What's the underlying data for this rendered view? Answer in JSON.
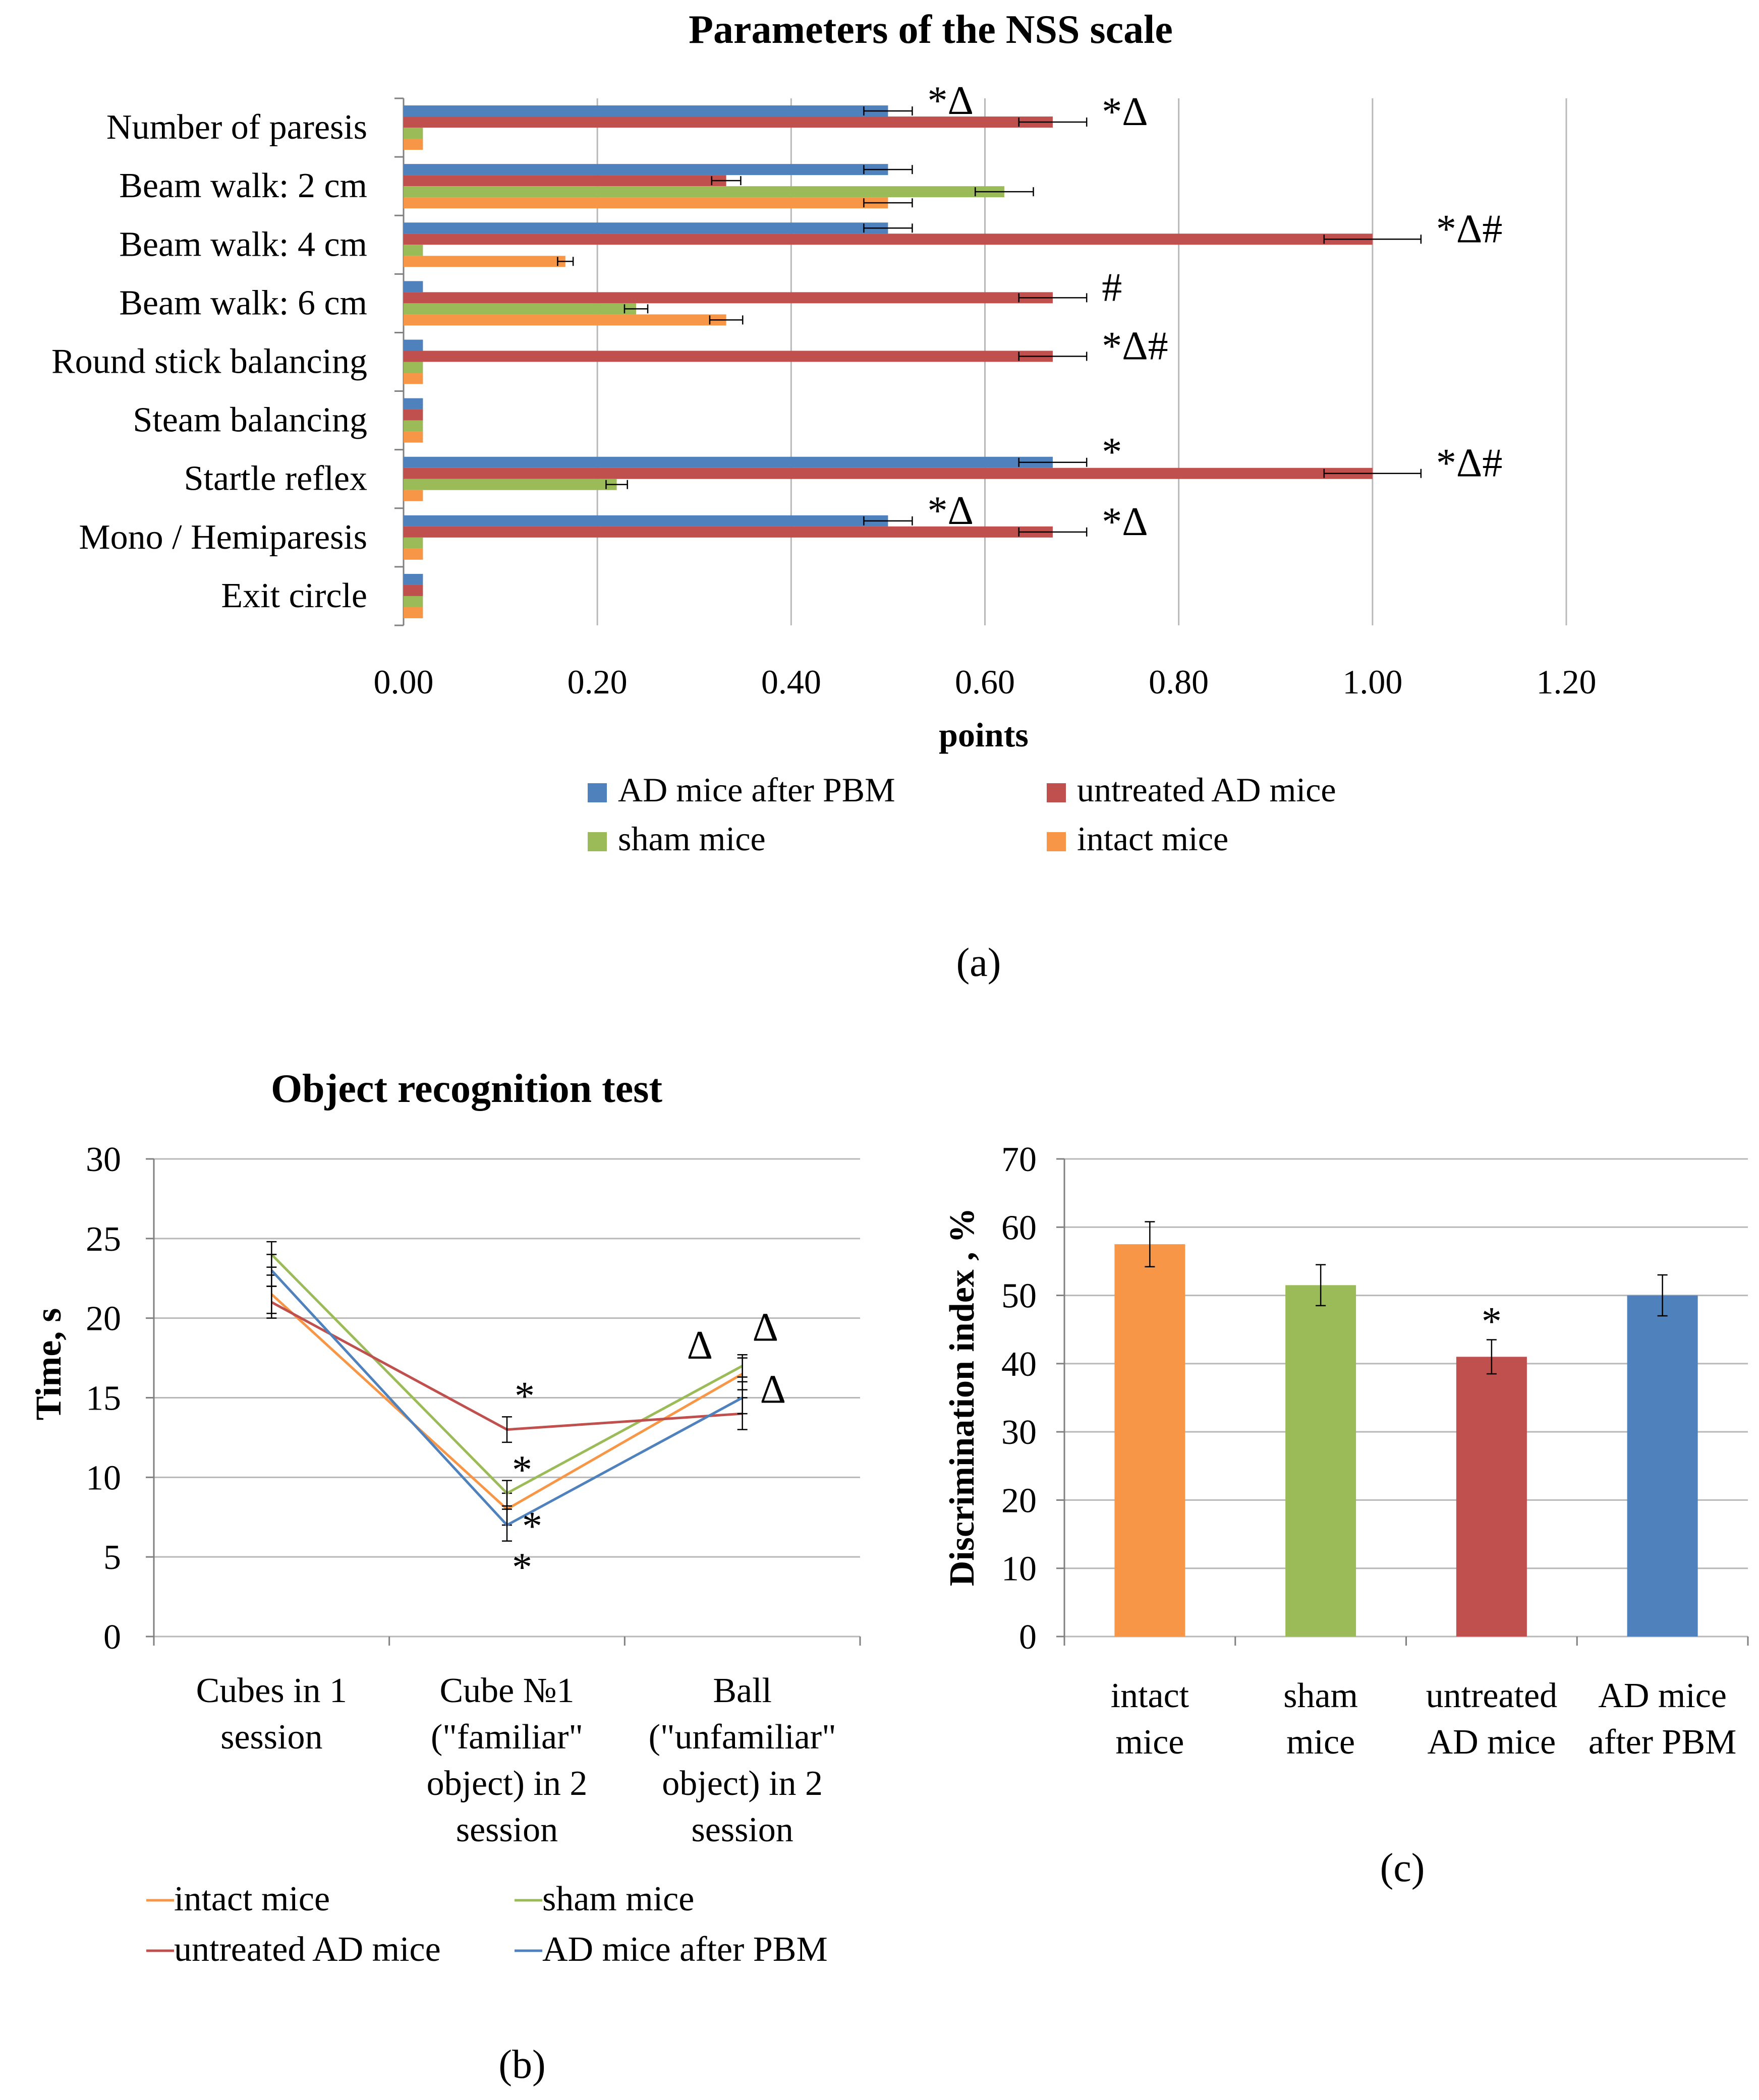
{
  "colors": {
    "ad_pbm": "#4F81BD",
    "untreated": "#C0504D",
    "sham": "#9BBB59",
    "intact": "#F79646",
    "grid": "#B8B8B8",
    "axis": "#808080"
  },
  "chart_data": [
    {
      "id": "a",
      "type": "bar",
      "orientation": "horizontal",
      "title": "Parameters of the NSS scale",
      "xlabel": "points",
      "ylabel": "",
      "panel_label": "(a)",
      "xlim": [
        0,
        1.2
      ],
      "ticks": [
        "0.00",
        "0.20",
        "0.40",
        "0.60",
        "0.80",
        "1.00",
        "1.20"
      ],
      "tick_values": [
        0,
        0.2,
        0.4,
        0.6,
        0.8,
        1.0,
        1.2
      ],
      "legend_placement": "bottom",
      "categories": [
        "Number of paresis",
        "Beam walk: 2 cm",
        "Beam walk: 4 cm",
        "Beam walk: 6 cm",
        "Round stick balancing",
        "Steam balancing",
        "Startle reflex",
        "Mono / Hemiparesis",
        "Exit circle"
      ],
      "series": [
        {
          "name": "AD mice after PBM",
          "color_key": "ad_pbm",
          "values": [
            0.5,
            0.5,
            0.5,
            0.02,
            0.02,
            0.02,
            0.67,
            0.5,
            0.02
          ],
          "errors": [
            0.025,
            0.025,
            0.025,
            0,
            0,
            0,
            0.035,
            0.025,
            0
          ]
        },
        {
          "name": "untreated AD mice",
          "color_key": "untreated",
          "values": [
            0.67,
            0.333,
            1.0,
            0.67,
            0.67,
            0.02,
            1.0,
            0.67,
            0.02
          ],
          "errors": [
            0.035,
            0.015,
            0.05,
            0.035,
            0.035,
            0,
            0.05,
            0.035,
            0
          ]
        },
        {
          "name": "sham mice",
          "color_key": "sham",
          "values": [
            0.02,
            0.62,
            0.02,
            0.24,
            0.02,
            0.02,
            0.22,
            0.02,
            0.02
          ],
          "errors": [
            0,
            0.03,
            0,
            0.012,
            0,
            0,
            0.011,
            0,
            0
          ]
        },
        {
          "name": "intact mice",
          "color_key": "intact",
          "values": [
            0.02,
            0.5,
            0.167,
            0.333,
            0.02,
            0.02,
            0.02,
            0.02,
            0.02
          ],
          "errors": [
            0,
            0.025,
            0.008,
            0.017,
            0,
            0,
            0,
            0,
            0
          ]
        }
      ],
      "annotations": [
        {
          "text": "*Δ",
          "category": 0,
          "series": 0
        },
        {
          "text": "*Δ",
          "category": 0,
          "series": 1
        },
        {
          "text": "*Δ#",
          "category": 2,
          "series": 1
        },
        {
          "text": "#",
          "category": 3,
          "series": 1
        },
        {
          "text": "*Δ#",
          "category": 4,
          "series": 1
        },
        {
          "text": "*",
          "category": 6,
          "series": 0
        },
        {
          "text": "*Δ#",
          "category": 6,
          "series": 1
        },
        {
          "text": "*Δ",
          "category": 7,
          "series": 0
        },
        {
          "text": "*Δ",
          "category": 7,
          "series": 1
        }
      ]
    },
    {
      "id": "b",
      "type": "line",
      "title": "Object recognition test",
      "xlabel": "",
      "ylabel": "Time, s",
      "panel_label": "(b)",
      "ylim": [
        0,
        30
      ],
      "yticks": [
        0,
        5,
        10,
        15,
        20,
        25,
        30
      ],
      "legend_placement": "bottom",
      "categories": [
        [
          "Cubes in 1",
          "session"
        ],
        [
          "Cube  №1",
          "(\"familiar\"",
          "object) in 2",
          "session"
        ],
        [
          "Ball",
          "(\"unfamiliar\"",
          "object) in 2",
          "session"
        ]
      ],
      "series": [
        {
          "name": "intact mice",
          "color_key": "intact",
          "values": [
            21.5,
            8.0,
            16.5
          ],
          "errors": [
            1.2,
            1.0,
            1.0
          ]
        },
        {
          "name": "sham mice",
          "color_key": "sham",
          "values": [
            24.0,
            9.0,
            17.0
          ],
          "errors": [
            0.8,
            0.8,
            0.7
          ]
        },
        {
          "name": "untreated AD mice",
          "color_key": "untreated",
          "values": [
            21.0,
            13.0,
            14.0
          ],
          "errors": [
            1.0,
            0.8,
            1.0
          ]
        },
        {
          "name": "AD mice after PBM",
          "color_key": "ad_pbm",
          "values": [
            23.0,
            7.0,
            15.0
          ],
          "errors": [
            1.0,
            1.0,
            1.0
          ]
        }
      ],
      "annotations": [
        {
          "text": "*",
          "category": 1,
          "series": 2
        },
        {
          "text": "*",
          "category": 1,
          "series": 1
        },
        {
          "text": "*",
          "category": 1,
          "series": 0
        },
        {
          "text": "*",
          "category": 1,
          "series": 3
        },
        {
          "text": "Δ",
          "category": 2,
          "series": 0
        },
        {
          "text": "Δ",
          "category": 2,
          "series": 1
        },
        {
          "text": "Δ",
          "category": 2,
          "series": 3
        }
      ]
    },
    {
      "id": "c",
      "type": "bar",
      "orientation": "vertical",
      "title": "",
      "xlabel": "",
      "ylabel": "Discrimination index , %",
      "panel_label": "(c)",
      "ylim": [
        0,
        70
      ],
      "yticks": [
        0,
        10,
        20,
        30,
        40,
        50,
        60,
        70
      ],
      "categories": [
        [
          "intact",
          "mice"
        ],
        [
          "sham",
          "mice"
        ],
        [
          "untreated",
          "AD mice"
        ],
        [
          "AD mice",
          "after PBM"
        ]
      ],
      "color_keys": [
        "intact",
        "sham",
        "untreated",
        "ad_pbm"
      ],
      "values": [
        57.5,
        51.5,
        41.0,
        50.0
      ],
      "errors": [
        3.3,
        3.0,
        2.5,
        3.0
      ],
      "annotations": [
        {
          "text": "*",
          "category": 2
        }
      ]
    }
  ]
}
